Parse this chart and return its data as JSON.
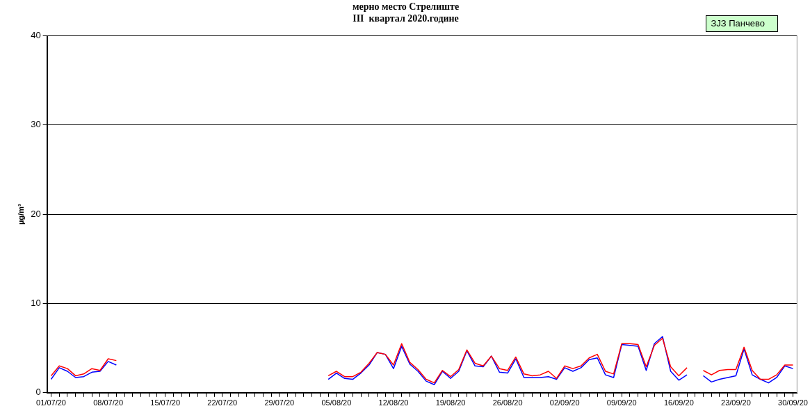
{
  "chart_data": {
    "type": "line",
    "title": "мерно место Стрелиште",
    "subtitle": "III  квартал 2020.године",
    "ylabel": "µg/m³",
    "categories": [
      "01/07/20",
      null,
      null,
      null,
      null,
      null,
      null,
      "08/07/20",
      null,
      null,
      null,
      null,
      null,
      null,
      "15/07/20",
      null,
      null,
      null,
      null,
      null,
      null,
      "22/07/20",
      null,
      null,
      null,
      null,
      null,
      null,
      "29/07/20",
      null,
      null,
      null,
      null,
      null,
      null,
      "05/08/20",
      null,
      null,
      null,
      null,
      null,
      null,
      "12/08/20",
      null,
      null,
      null,
      null,
      null,
      null,
      "19/08/20",
      null,
      null,
      null,
      null,
      null,
      null,
      "26/08/20",
      null,
      null,
      null,
      null,
      null,
      null,
      "02/09/20",
      null,
      null,
      null,
      null,
      null,
      null,
      "09/09/20",
      null,
      null,
      null,
      null,
      null,
      null,
      "16/09/20",
      null,
      null,
      null,
      null,
      null,
      null,
      "23/09/20",
      null,
      null,
      null,
      null,
      null,
      null,
      "30/09/20"
    ],
    "series": [
      {
        "color": "#ff0000",
        "values": [
          1.9,
          3.0,
          2.7,
          1.9,
          2.1,
          2.7,
          2.5,
          3.8,
          3.6,
          null,
          null,
          null,
          null,
          null,
          null,
          null,
          null,
          null,
          null,
          null,
          null,
          null,
          null,
          null,
          null,
          null,
          null,
          null,
          null,
          null,
          null,
          null,
          null,
          null,
          1.9,
          2.4,
          1.8,
          1.8,
          2.3,
          3.3,
          4.5,
          4.3,
          3.1,
          5.5,
          3.4,
          2.6,
          1.5,
          1.1,
          2.5,
          1.8,
          2.6,
          4.8,
          3.3,
          3.0,
          4.1,
          2.7,
          2.5,
          4.0,
          2.1,
          1.9,
          2.0,
          2.4,
          1.6,
          3.0,
          2.7,
          3.0,
          3.9,
          4.3,
          2.4,
          2.1,
          5.5,
          5.5,
          5.4,
          2.9,
          5.3,
          6.1,
          2.9,
          1.9,
          2.8,
          null,
          2.5,
          2.0,
          2.5,
          2.6,
          2.6,
          5.1,
          2.5,
          1.5,
          1.5,
          2.0,
          3.1,
          3.1
        ]
      },
      {
        "color": "#0000ff",
        "values": [
          1.5,
          2.8,
          2.4,
          1.7,
          1.8,
          2.3,
          2.4,
          3.5,
          3.1,
          null,
          null,
          null,
          null,
          null,
          null,
          null,
          null,
          null,
          null,
          null,
          null,
          null,
          null,
          null,
          null,
          null,
          null,
          null,
          null,
          null,
          null,
          null,
          null,
          null,
          1.5,
          2.2,
          1.6,
          1.5,
          2.2,
          3.1,
          4.5,
          4.3,
          2.7,
          5.2,
          3.2,
          2.4,
          1.3,
          0.9,
          2.4,
          1.6,
          2.4,
          4.7,
          3.0,
          2.9,
          4.1,
          2.3,
          2.2,
          3.8,
          1.7,
          1.7,
          1.7,
          1.8,
          1.5,
          2.8,
          2.4,
          2.8,
          3.7,
          3.9,
          2.0,
          1.7,
          5.4,
          5.3,
          5.2,
          2.5,
          5.5,
          6.3,
          2.4,
          1.4,
          2.0,
          null,
          1.9,
          1.2,
          1.5,
          1.7,
          1.9,
          4.9,
          2.0,
          1.5,
          1.1,
          1.7,
          3.0,
          2.7
        ]
      }
    ],
    "ylim": [
      0,
      40
    ],
    "yticks": [
      0,
      10,
      20,
      30,
      40
    ],
    "grid": "y",
    "marker": "none",
    "line_style": "solid",
    "legend": false,
    "annotations": [
      "ЗЈЗ Панчево"
    ]
  }
}
